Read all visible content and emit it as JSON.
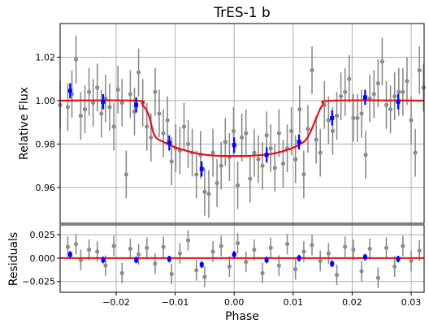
{
  "chart_data": [
    {
      "type": "scatter",
      "panel": "lightcurve",
      "title": "TrES-1 b",
      "xlabel": "",
      "ylabel": "Relative Flux",
      "xlim": [
        -0.0295,
        0.0322
      ],
      "ylim": [
        0.9435,
        1.0355
      ],
      "yticks": [
        0.96,
        0.98,
        1.0,
        1.02
      ],
      "ytick_labels": [
        "0.96",
        "0.98",
        "1.00",
        "1.02"
      ],
      "grid": true,
      "colors": {
        "raw": "#8c8c8c",
        "binned": "#0000ff",
        "model": "#e81010"
      },
      "series": [
        {
          "role": "raw",
          "x": [
            -0.0295,
            -0.0282,
            -0.0275,
            -0.0268,
            -0.026,
            -0.0253,
            -0.0246,
            -0.0239,
            -0.0232,
            -0.0225,
            -0.0218,
            -0.0211,
            -0.0204,
            -0.0197,
            -0.019,
            -0.0183,
            -0.0176,
            -0.0169,
            -0.0162,
            -0.0155,
            -0.0148,
            -0.0141,
            -0.0134,
            -0.0127,
            -0.012,
            -0.0113,
            -0.0106,
            -0.0099,
            -0.0092,
            -0.0085,
            -0.0078,
            -0.0071,
            -0.0064,
            -0.0057,
            -0.005,
            -0.0043,
            -0.0036,
            -0.0029,
            -0.0022,
            -0.0015,
            -0.0008,
            -0.0001,
            0.0006,
            0.0013,
            0.002,
            0.0027,
            0.0034,
            0.0041,
            0.0048,
            0.0055,
            0.0062,
            0.0069,
            0.0076,
            0.0083,
            0.009,
            0.0097,
            0.0104,
            0.0111,
            0.0118,
            0.0125,
            0.0132,
            0.0139,
            0.0146,
            0.0153,
            0.016,
            0.0167,
            0.0174,
            0.0181,
            0.0188,
            0.0195,
            0.0202,
            0.0209,
            0.0216,
            0.0223,
            0.023,
            0.0237,
            0.0244,
            0.0251,
            0.0258,
            0.0265,
            0.0272,
            0.0279,
            0.0286,
            0.0293,
            0.03,
            0.0307,
            0.0314,
            0.0321
          ],
          "y": [
            0.998,
            0.997,
            1.003,
            1.019,
            0.993,
            0.996,
            1.004,
            0.999,
            1.006,
            0.994,
            1.001,
            0.997,
            0.988,
            1.005,
            0.999,
            0.966,
            1.003,
            0.995,
            1.013,
            0.999,
            0.988,
            0.983,
            1.004,
            0.994,
            0.985,
            0.991,
            0.972,
            0.978,
            0.977,
            0.988,
            0.98,
            0.976,
            0.966,
            0.975,
            0.958,
            0.957,
            0.976,
            0.962,
            0.97,
            0.981,
            0.974,
            0.986,
            0.961,
            0.983,
            0.985,
            0.964,
            0.976,
            0.973,
            0.97,
            0.984,
            0.978,
            0.969,
            0.985,
            0.971,
            0.978,
            0.986,
            0.973,
            0.996,
            0.966,
            0.987,
            1.014,
            0.982,
            0.976,
            0.998,
            0.991,
            0.986,
            0.993,
            1.002,
            1.004,
            1.01,
            0.992,
            0.992,
            0.994,
            0.975,
            1.001,
            1.003,
            1.008,
            1.018,
            0.998,
            0.996,
            1.002,
            1.004,
            1.004,
            1.009,
            0.991,
            0.976,
            1.014,
            1.006
          ],
          "yerr": 0.011
        },
        {
          "role": "binned",
          "x": [
            -0.0278,
            -0.0222,
            -0.0166,
            -0.011,
            -0.0055,
            0.0,
            0.0055,
            0.011,
            0.0166,
            0.0222,
            0.0278
          ],
          "y": [
            1.0045,
            0.9995,
            0.998,
            0.9805,
            0.9685,
            0.9795,
            0.975,
            0.981,
            0.992,
            1.0015,
            0.9995
          ],
          "yerr": 0.0035
        },
        {
          "role": "model",
          "x": [
            -0.0295,
            -0.0166,
            -0.0155,
            -0.0145,
            -0.0135,
            -0.012,
            -0.01,
            -0.008,
            -0.006,
            -0.004,
            -0.002,
            0.0,
            0.002,
            0.004,
            0.006,
            0.008,
            0.01,
            0.012,
            0.013,
            0.014,
            0.015,
            0.0166,
            0.0322
          ],
          "y": [
            1.0,
            1.0,
            0.998,
            0.9935,
            0.984,
            0.981,
            0.9785,
            0.9768,
            0.9755,
            0.9748,
            0.9745,
            0.9745,
            0.9745,
            0.9748,
            0.9753,
            0.9765,
            0.9783,
            0.9815,
            0.986,
            0.9925,
            0.998,
            1.0,
            1.0
          ]
        }
      ]
    },
    {
      "type": "scatter",
      "panel": "residuals",
      "title": "",
      "xlabel": "Phase",
      "ylabel": "Residuals",
      "xlim": [
        -0.0295,
        0.0322
      ],
      "ylim": [
        -0.0365,
        0.0355
      ],
      "xticks": [
        -0.02,
        -0.01,
        0.0,
        0.01,
        0.02,
        0.03
      ],
      "xtick_labels": [
        "−0.02",
        "−0.01",
        "0.00",
        "0.01",
        "0.02",
        "0.03"
      ],
      "yticks": [
        -0.025,
        0.0,
        0.025
      ],
      "ytick_labels": [
        "−0.025",
        "0.000",
        "0.025"
      ],
      "grid": true,
      "series": [
        {
          "role": "raw",
          "x": [
            -0.0282,
            -0.0268,
            -0.026,
            -0.0246,
            -0.0232,
            -0.0218,
            -0.0204,
            -0.019,
            -0.0176,
            -0.0162,
            -0.0148,
            -0.0134,
            -0.012,
            -0.0106,
            -0.0092,
            -0.0078,
            -0.0064,
            -0.005,
            -0.0036,
            -0.0022,
            -0.0008,
            0.0006,
            0.002,
            0.0034,
            0.0048,
            0.0062,
            0.0076,
            0.009,
            0.0104,
            0.0118,
            0.0132,
            0.0146,
            0.016,
            0.0174,
            0.0188,
            0.0202,
            0.0216,
            0.023,
            0.0244,
            0.0258,
            0.0272,
            0.0286,
            0.03,
            0.0314
          ],
          "y": [
            0.012,
            0.015,
            -0.002,
            0.009,
            0.007,
            -0.008,
            0.013,
            -0.016,
            0.01,
            0.004,
            0.011,
            -0.006,
            0.012,
            -0.017,
            0.005,
            0.019,
            -0.013,
            -0.02,
            0.007,
            0.013,
            -0.009,
            0.016,
            -0.004,
            0.009,
            -0.016,
            0.011,
            -0.008,
            0.015,
            -0.012,
            0.007,
            0.014,
            -0.003,
            0.005,
            -0.018,
            0.012,
            0.009,
            -0.014,
            0.01,
            -0.021,
            0.011,
            -0.009,
            0.013,
            -0.003,
            0.008
          ],
          "yerr": 0.011
        },
        {
          "role": "binned",
          "x": [
            -0.0278,
            -0.0222,
            -0.0166,
            -0.011,
            -0.0055,
            0.0,
            0.0055,
            0.011,
            0.0166,
            0.0222,
            0.0278
          ],
          "y": [
            0.004,
            -0.002,
            -0.002,
            -0.001,
            -0.007,
            0.004,
            -0.002,
            0.0,
            -0.006,
            0.001,
            -0.001
          ],
          "yerr": 0.0035
        },
        {
          "role": "zero-line",
          "x": [
            -0.0295,
            0.0322
          ],
          "y": [
            0.0,
            0.0
          ]
        }
      ]
    }
  ]
}
